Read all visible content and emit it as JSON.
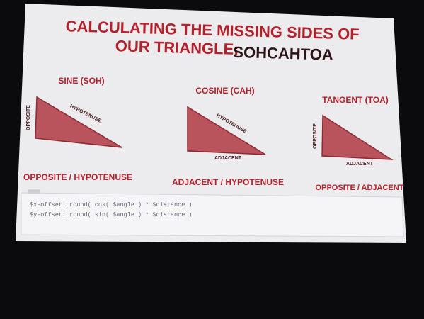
{
  "title": {
    "line1": "CALCULATING THE MISSING SIDES OF",
    "line2": "OUR TRIANGLE:",
    "accent": "SOHCAHTOA"
  },
  "panels": [
    {
      "heading": "SINE (SOH)",
      "side_a": "OPPOSITE",
      "side_b": "HYPOTENUSE",
      "formula": "OPPOSITE / HYPOTENUSE"
    },
    {
      "heading": "COSINE (CAH)",
      "side_a": "HYPOTENUSE",
      "side_b": "ADJACENT",
      "formula": "ADJACENT / HYPOTENUSE"
    },
    {
      "heading": "TANGENT (TOA)",
      "side_a": "OPPOSITE",
      "side_b": "ADJACENT",
      "formula": "OPPOSITE / ADJACENT"
    }
  ],
  "code": [
    "$x-offset: round( cos( $angle ) * $distance )",
    "$y-offset: round( sin( $angle ) * $distance )"
  ]
}
